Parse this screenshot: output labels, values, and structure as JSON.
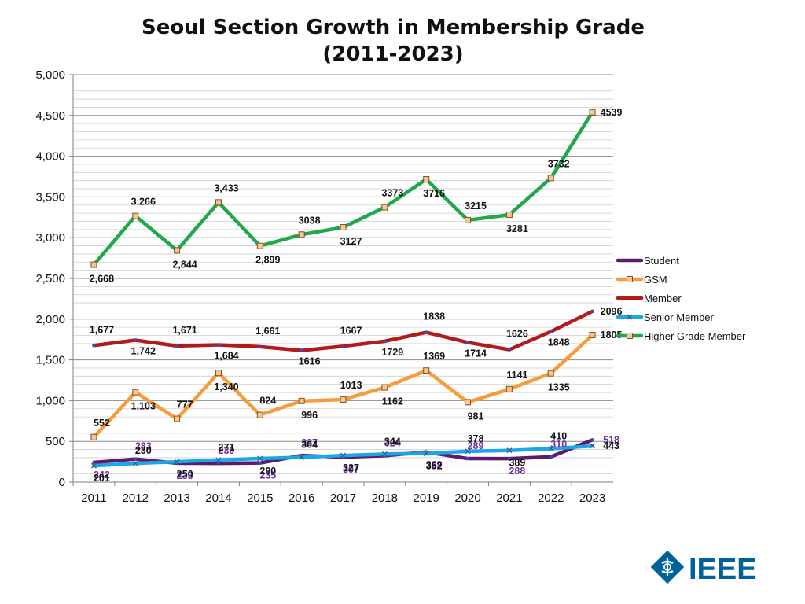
{
  "chart_data": {
    "type": "line",
    "title": [
      "Seoul Section Growth in Membership Grade",
      "(2011-2023)"
    ],
    "xlabel": "",
    "ylabel": "",
    "ylim": [
      0,
      5000
    ],
    "yticks": [
      "0",
      "500",
      "1,000",
      "1,500",
      "2,000",
      "2,500",
      "3,000",
      "3,500",
      "4,000",
      "4,500",
      "5,000"
    ],
    "categories": [
      "2011",
      "2012",
      "2013",
      "2014",
      "2015",
      "2016",
      "2017",
      "2018",
      "2019",
      "2020",
      "2021",
      "2022",
      "2023"
    ],
    "legend_position": "right",
    "series": [
      {
        "name": "Student",
        "color": "#5e1a6b",
        "values": [
          242,
          283,
          233,
          230,
          235,
          327,
          307,
          324,
          369,
          289,
          288,
          310,
          518
        ],
        "labels": [
          "242",
          "283",
          "233",
          "230",
          "235",
          "327",
          "307",
          "324",
          "369",
          "289",
          "288",
          "310",
          "518"
        ],
        "label_color": "#7030a0",
        "marker": "none"
      },
      {
        "name": "GSM",
        "color": "#f79c3a",
        "values": [
          552,
          1103,
          777,
          1340,
          824,
          996,
          1013,
          1162,
          1369,
          981,
          1141,
          1335,
          1805
        ],
        "labels": [
          "552",
          "1,103",
          "777",
          "1,340",
          "824",
          "996",
          "1013",
          "1162",
          "1369",
          "981",
          "1141",
          "1335",
          "1805"
        ],
        "label_color": "#111111",
        "marker": "square"
      },
      {
        "name": "Member",
        "color": "#b31b1b",
        "values": [
          1677,
          1742,
          1671,
          1684,
          1661,
          1616,
          1667,
          1729,
          1838,
          1714,
          1626,
          1848,
          2096
        ],
        "labels": [
          "1,677",
          "1,742",
          "1,671",
          "1,684",
          "1,661",
          "1616",
          "1667",
          "1729",
          "1838",
          "1714",
          "1626",
          "1848",
          "2096"
        ],
        "label_color": "#111111",
        "marker": "none"
      },
      {
        "name": "Senior Member",
        "color": "#1aa7e8",
        "values": [
          201,
          230,
          250,
          271,
          290,
          304,
          327,
          344,
          352,
          378,
          389,
          410,
          443
        ],
        "labels": [
          "201",
          "230",
          "250",
          "271",
          "290",
          "304",
          "327",
          "344",
          "352",
          "378",
          "389",
          "410",
          "443"
        ],
        "label_color": "#111111",
        "marker": "x"
      },
      {
        "name": "Higher Grade Member",
        "color": "#21a84a",
        "values": [
          2668,
          3266,
          2844,
          3433,
          2899,
          3038,
          3127,
          3373,
          3716,
          3215,
          3281,
          3732,
          4539
        ],
        "labels": [
          "2,668",
          "3,266",
          "2,844",
          "3,433",
          "2,899",
          "3038",
          "3127",
          "3373",
          "3716",
          "3215",
          "3281",
          "3732",
          "4539"
        ],
        "label_color": "#111111",
        "marker": "square"
      }
    ]
  },
  "branding": {
    "logo_text": "IEEE",
    "logo_color": "#00629b"
  }
}
